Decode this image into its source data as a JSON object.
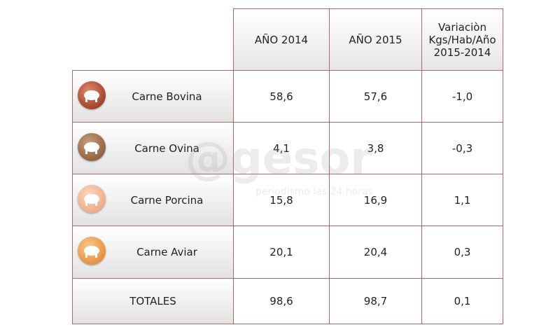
{
  "table": {
    "header": [
      "AÑO 2014",
      "AÑO 2015",
      [
        "Variaciòn",
        "Kgs/Hab/Año",
        "2015-2014"
      ]
    ],
    "rows": [
      [
        "Carne Bovina",
        "58,6",
        "57,6",
        "-1,0"
      ],
      [
        "Carne Ovina",
        "4,1",
        "3,8",
        "-0,3"
      ],
      [
        "Carne Porcina",
        "15,8",
        "16,9",
        "1,1"
      ],
      [
        "Carne Aviar",
        "20,1",
        "20,4",
        "0,3"
      ],
      [
        "TOTALES",
        "98,6",
        "98,7",
        "0,1"
      ]
    ]
  },
  "watermark": {
    "brand": "@gesor",
    "tagline": "periodismo las 24 horas"
  }
}
